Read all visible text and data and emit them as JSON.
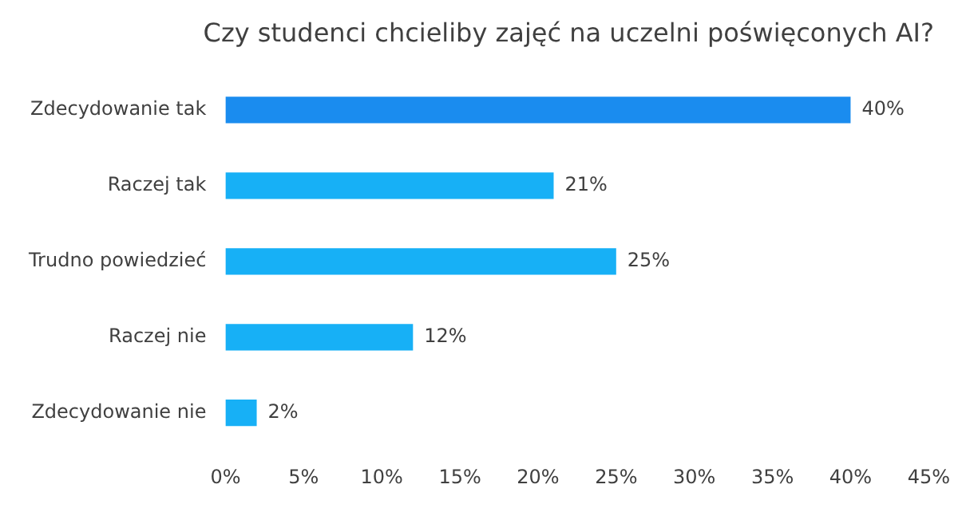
{
  "chart_data": {
    "type": "bar",
    "orientation": "horizontal",
    "title": "Czy studenci chcieliby zajęć na uczelni poświęconych AI?",
    "categories": [
      "Zdecydowanie tak",
      "Raczej tak",
      "Trudno powiedzieć",
      "Raczej nie",
      "Zdecydowanie nie"
    ],
    "values": [
      40,
      21,
      25,
      12,
      2
    ],
    "value_labels": [
      "40%",
      "21%",
      "25%",
      "12%",
      "2%"
    ],
    "colors": [
      "#1a8cef",
      "#17b0f6",
      "#17b0f6",
      "#17b0f6",
      "#17b0f6"
    ],
    "xlim": [
      0,
      45
    ],
    "xticks": [
      {
        "value": 0,
        "label": "0%"
      },
      {
        "value": 5,
        "label": "5%"
      },
      {
        "value": 10,
        "label": "10%"
      },
      {
        "value": 15,
        "label": "15%"
      },
      {
        "value": 20,
        "label": "20%"
      },
      {
        "value": 25,
        "label": "25%"
      },
      {
        "value": 30,
        "label": "30%"
      },
      {
        "value": 35,
        "label": "35%"
      },
      {
        "value": 40,
        "label": "40%"
      },
      {
        "value": 45,
        "label": "45%"
      }
    ],
    "grid": false,
    "legend": false
  }
}
